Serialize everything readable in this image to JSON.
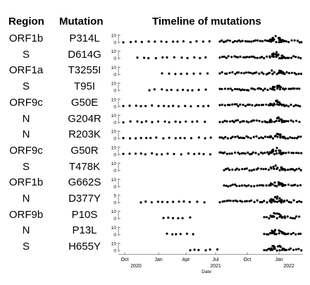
{
  "headers": {
    "region": "Region",
    "mutation": "Mutation",
    "title": "Timeline of mutations"
  },
  "chart_data": {
    "type": "scatter",
    "title": "Timeline of mutations",
    "xlabel": "Date",
    "x_ticks": [
      "Oct",
      "Jan",
      "Apr",
      "Jul",
      "Oct",
      "Jan"
    ],
    "x_year_labels": [
      "2020",
      "2021",
      "2022"
    ],
    "rows": [
      {
        "region": "ORF1b",
        "mutation": "P314L",
        "ymax": 10,
        "yticks": [
          "10",
          "0"
        ]
      },
      {
        "region": "S",
        "mutation": "D614G",
        "ymax": 10,
        "yticks": [
          "10",
          "0"
        ]
      },
      {
        "region": "ORF1a",
        "mutation": "T3255I",
        "ymax": 10,
        "yticks": [
          "10",
          "0"
        ]
      },
      {
        "region": "S",
        "mutation": "T95I",
        "ymax": 10,
        "yticks": [
          "10",
          "0"
        ]
      },
      {
        "region": "ORF9c",
        "mutation": "G50E",
        "ymax": 10,
        "yticks": [
          "10",
          "0"
        ]
      },
      {
        "region": "N",
        "mutation": "G204R",
        "ymax": 10,
        "yticks": [
          "10",
          "0"
        ]
      },
      {
        "region": "N",
        "mutation": "R203K",
        "ymax": 10,
        "yticks": [
          "10",
          "0"
        ]
      },
      {
        "region": "ORF9c",
        "mutation": "G50R",
        "ymax": 10,
        "yticks": [
          "10",
          "0"
        ]
      },
      {
        "region": "S",
        "mutation": "T478K",
        "ymax": 10,
        "yticks": [
          "10",
          "0"
        ]
      },
      {
        "region": "ORF1b",
        "mutation": "G662S",
        "ymax": 10,
        "yticks": [
          "10",
          "0"
        ]
      },
      {
        "region": "N",
        "mutation": "D377Y",
        "ymax": 5,
        "yticks": [
          "5",
          "0"
        ]
      },
      {
        "region": "ORF9b",
        "mutation": "P10S",
        "ymax": 10,
        "yticks": [
          "10",
          "0"
        ]
      },
      {
        "region": "N",
        "mutation": "P13L",
        "ymax": 10,
        "yticks": [
          "10",
          "0"
        ]
      },
      {
        "region": "S",
        "mutation": "H655Y",
        "ymax": 10,
        "yticks": [
          "10",
          "0"
        ]
      }
    ]
  }
}
